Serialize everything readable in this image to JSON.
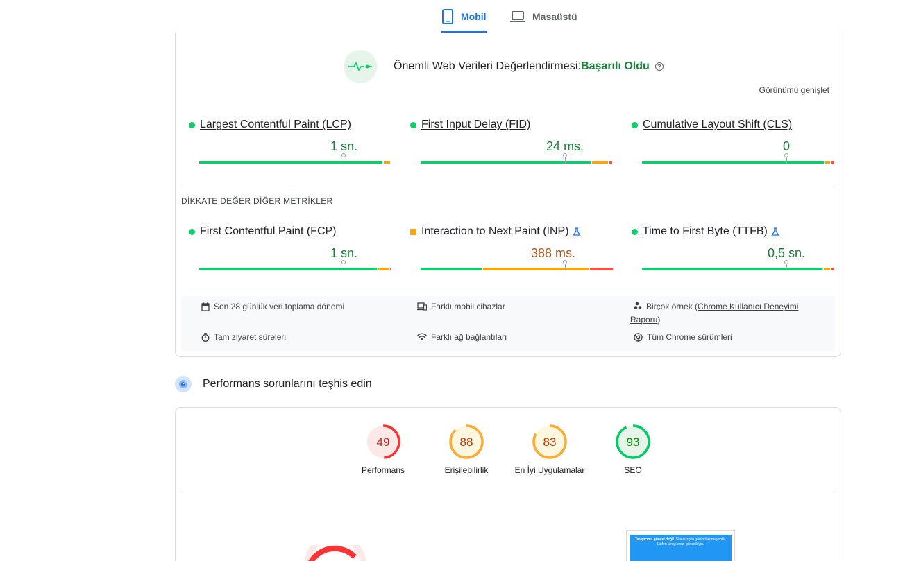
{
  "tabs": {
    "mobile": "Mobil",
    "desktop": "Masaüstü"
  },
  "cwv": {
    "title": "Önemli Web Verileri Değerlendirmesi:",
    "status": "Başarılı Oldu",
    "help": "?",
    "expand": "Görünümü genişlet",
    "colors": {
      "good": "#0cce6b",
      "average": "#ffa400",
      "poor": "#ff4e42"
    },
    "metrics": [
      {
        "label": "Largest Contentful Paint (LCP)",
        "value": "1 sn.",
        "status": "good"
      },
      {
        "label": "First Input Delay (FID)",
        "value": "24 ms.",
        "status": "good"
      },
      {
        "label": "Cumulative Layout Shift (CLS)",
        "value": "0",
        "status": "good"
      }
    ],
    "other_title": "DİKKATE DEĞER DİĞER METRİKLER",
    "other_metrics": [
      {
        "label": "First Contentful Paint (FCP)",
        "value": "1 sn.",
        "status": "good",
        "experimental": false
      },
      {
        "label": "Interaction to Next Paint (INP)",
        "value": "388 ms.",
        "status": "average",
        "experimental": true
      },
      {
        "label": "Time to First Byte (TTFB)",
        "value": "0,5 sn.",
        "status": "good",
        "experimental": true
      }
    ],
    "info": {
      "period": "Son 28 günlük veri toplama dönemi",
      "devices": "Farklı mobil cihazlar",
      "samples_prefix": "Birçok örnek (",
      "samples_link": "Chrome Kullanıcı Deneyimi",
      "samples_link2": "Raporu",
      "samples_suffix": ")",
      "visits": "Tam ziyaret süreleri",
      "network": "Farklı ağ bağlantıları",
      "chrome": "Tüm Chrome sürümleri"
    }
  },
  "diagnose": {
    "title": "Performans sorunlarını teşhis edin"
  },
  "scores": [
    {
      "value": "49",
      "label": "Performans",
      "fraction": 0.49,
      "color": "#ff3333",
      "bg": "#fce8e6",
      "text": "#c5221f"
    },
    {
      "value": "88",
      "label": "Erişilebilirlik",
      "fraction": 0.88,
      "color": "#ffaa33",
      "bg": "#fef7e0",
      "text": "#c33300"
    },
    {
      "value": "83",
      "label": "En İyi Uygulamalar",
      "fraction": 0.83,
      "color": "#ffaa33",
      "bg": "#fef7e0",
      "text": "#c33300"
    },
    {
      "value": "93",
      "label": "SEO",
      "fraction": 0.93,
      "color": "#00cc66",
      "bg": "#e6f4ea",
      "text": "#008800"
    }
  ],
  "preview": {
    "bold": "Tarayıcınız güncel değil.",
    "text": " Site düzgün görüntülenmeyebilir. Lütfen tarayıcınızı güncelleyin."
  }
}
